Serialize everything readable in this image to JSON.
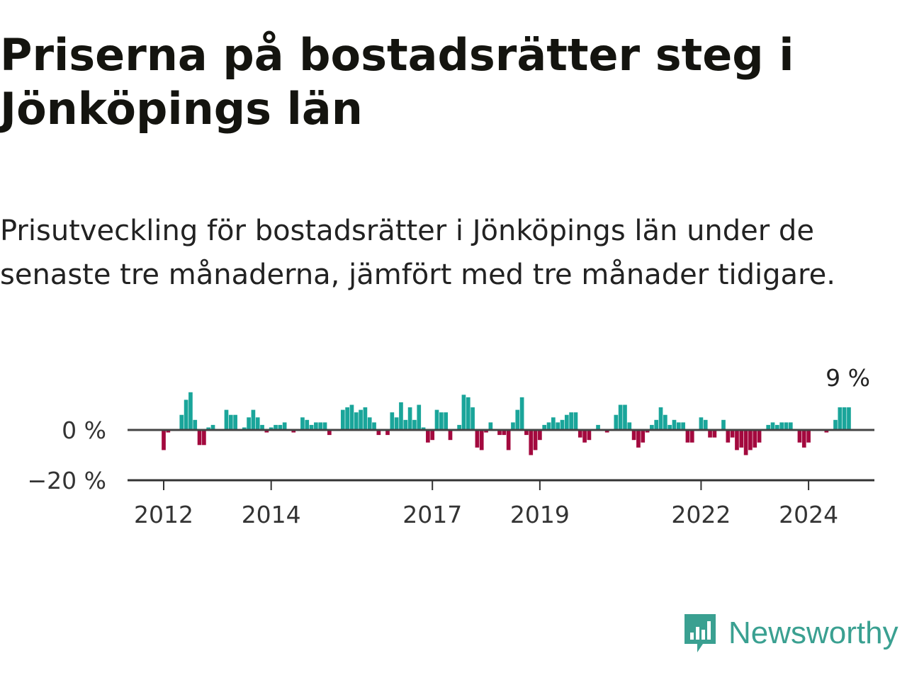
{
  "title": "Priserna på bostadsrätter steg i Jönköpings län",
  "subtitle": "Prisutveckling för bostadsrätter i Jönköpings län under de senaste tre månaderna, jämfört med tre månader tidigare.",
  "brand": {
    "name": "Newsworthy",
    "icon": "newsworthy-logo-icon",
    "color": "#3aa091"
  },
  "colors": {
    "positive": "#1aa59a",
    "negative": "#a3093e",
    "zero_line": "#444444",
    "grid": "#cccccc",
    "axis": "#333333"
  },
  "chart_data": {
    "type": "bar",
    "x_unit": "month",
    "x_start": "2011-07",
    "ylim": [
      -21,
      17
    ],
    "yticks": [
      {
        "value": 0,
        "label": "0 %"
      },
      {
        "value": -20,
        "label": "−20 %"
      }
    ],
    "xticks": [
      {
        "value": "2012-01",
        "label": "2012"
      },
      {
        "value": "2014-01",
        "label": "2014"
      },
      {
        "value": "2017-01",
        "label": "2017"
      },
      {
        "value": "2019-01",
        "label": "2019"
      },
      {
        "value": "2022-01",
        "label": "2022"
      },
      {
        "value": "2024-01",
        "label": "2024"
      }
    ],
    "annotation": {
      "label": "9 %",
      "value": 9
    },
    "values": [
      0,
      0,
      0,
      0,
      0,
      0,
      -8,
      -1,
      0,
      0,
      6,
      12,
      15,
      4,
      -6,
      -6,
      1,
      2,
      0,
      0,
      8,
      6,
      6,
      0,
      1,
      5,
      8,
      5,
      2,
      -1,
      1,
      2,
      2,
      3,
      0,
      -1,
      0,
      5,
      4,
      2,
      3,
      3,
      3,
      -2,
      0,
      0,
      8,
      9,
      10,
      7,
      8,
      9,
      5,
      3,
      -2,
      0,
      -2,
      7,
      5,
      11,
      4,
      9,
      4,
      10,
      1,
      -5,
      -4,
      8,
      7,
      7,
      -4,
      0,
      2,
      14,
      13,
      9,
      -7,
      -8,
      -1,
      3,
      0,
      -2,
      -2,
      -8,
      3,
      8,
      13,
      -2,
      -10,
      -8,
      -4,
      2,
      3,
      5,
      3,
      4,
      6,
      7,
      7,
      -3,
      -5,
      -4,
      0,
      2,
      0,
      -1,
      0,
      6,
      10,
      10,
      3,
      -4,
      -7,
      -5,
      -1,
      2,
      4,
      9,
      6,
      2,
      4,
      3,
      3,
      -5,
      -5,
      0,
      5,
      4,
      -3,
      -3,
      0,
      4,
      -5,
      -3,
      -8,
      -7,
      -10,
      -8,
      -7,
      -5,
      0,
      2,
      3,
      2,
      3,
      3,
      3,
      0,
      -5,
      -7,
      -5,
      0,
      0,
      0,
      -1,
      0,
      4,
      9,
      9,
      9
    ]
  }
}
